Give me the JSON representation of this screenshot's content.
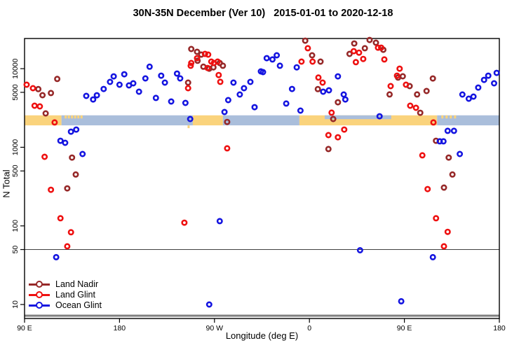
{
  "title": "30N-35N December (Ver 10)   2015-01-01 to 2020-12-18",
  "colors": {
    "land_nadir": "#962828",
    "land_glint": "#ee1010",
    "ocean_glint": "#1414e0",
    "strip_land": "#fad37c",
    "strip_ocean": "#aabedb",
    "ref_line_50": "#404040",
    "baseline_gray": "#7f7f7f",
    "axis": "#000000"
  },
  "legend": {
    "items": [
      {
        "label": "Land Nadir",
        "color_key": "land_nadir"
      },
      {
        "label": "Land Glint",
        "color_key": "land_glint"
      },
      {
        "label": "Ocean Glint",
        "color_key": "ocean_glint"
      }
    ]
  },
  "chart_data": {
    "type": "scatter",
    "title": "30N-35N December (Ver 10)   2015-01-01 to 2020-12-18",
    "xlabel": "Longitude (deg E)",
    "ylabel": "N Total",
    "grid": "off",
    "legend_position": "bottom-left",
    "x_axis": {
      "note": "wrapped longitude axis; d = degrees east of 90E at left edge, total span 450 deg",
      "range_deg": [
        0,
        450
      ],
      "ticks": [
        {
          "d": 0,
          "label": "90 E"
        },
        {
          "d": 90,
          "label": "180"
        },
        {
          "d": 180,
          "label": "90 W"
        },
        {
          "d": 270,
          "label": "0"
        },
        {
          "d": 360,
          "label": "90 E"
        },
        {
          "d": 450,
          "label": "180"
        }
      ]
    },
    "y_axis": {
      "scale": "log10",
      "ticks": [
        10,
        50,
        100,
        500,
        1000,
        5000,
        10000
      ],
      "range": [
        7,
        24500
      ]
    },
    "reference_lines": [
      {
        "n": 50,
        "width": 1,
        "color_key": "ref_line_50"
      },
      {
        "n": 7.2,
        "width": 3,
        "color_key": "baseline_gray"
      }
    ],
    "land_ocean_strip": {
      "note": "land/ocean map strip for 30N-35N band, N approx 1900-2550",
      "n_top": 2550,
      "n_bottom": 1900,
      "segments": [
        {
          "d1": 0,
          "d2": 35,
          "surface": "land"
        },
        {
          "d1": 35,
          "d2": 159.5,
          "surface": "ocean"
        },
        {
          "d1": 159.5,
          "d2": 188,
          "surface": "land"
        },
        {
          "d1": 188,
          "d2": 260.5,
          "surface": "ocean"
        },
        {
          "d1": 260.5,
          "d2": 391,
          "surface": "land"
        },
        {
          "d1": 391,
          "d2": 450,
          "surface": "ocean"
        }
      ],
      "island_specks_land_d": [
        39,
        42,
        45,
        48,
        51,
        54,
        396,
        400,
        404,
        408
      ],
      "ocean_sliver_top": {
        "d1": 284.5,
        "d2": 347.5
      },
      "land_notch_below_d": [
        155.5
      ]
    },
    "series": [
      {
        "name": "Land Nadir",
        "color_key": "land_nadir",
        "points": [
          [
            13,
            5500
          ],
          [
            17,
            4600
          ],
          [
            25,
            4900
          ],
          [
            31,
            7400
          ],
          [
            20,
            2700
          ],
          [
            45,
            740
          ],
          [
            48.5,
            450
          ],
          [
            40.5,
            300
          ],
          [
            158,
            17800
          ],
          [
            163.5,
            16400
          ],
          [
            167.5,
            15100
          ],
          [
            164,
            12600
          ],
          [
            169.5,
            10600
          ],
          [
            175,
            10000
          ],
          [
            179,
            10400
          ],
          [
            185,
            11800
          ],
          [
            188,
            10900
          ],
          [
            155,
            6650
          ],
          [
            192,
            2100
          ],
          [
            266,
            22700
          ],
          [
            272.5,
            14800
          ],
          [
            280.5,
            12300
          ],
          [
            278,
            5500
          ],
          [
            297,
            3740
          ],
          [
            292.5,
            2290
          ],
          [
            288,
            950
          ],
          [
            308,
            15400
          ],
          [
            312.5,
            20900
          ],
          [
            322.5,
            18200
          ],
          [
            327,
            23200
          ],
          [
            333,
            21400
          ],
          [
            340,
            17400
          ],
          [
            354,
            7700
          ],
          [
            358.5,
            8000
          ],
          [
            365,
            6000
          ],
          [
            346,
            4700
          ],
          [
            372,
            4700
          ],
          [
            381,
            5200
          ],
          [
            387,
            7500
          ],
          [
            375,
            2750
          ],
          [
            390,
            1210
          ],
          [
            402,
            740
          ],
          [
            405.5,
            450
          ],
          [
            397.5,
            307
          ]
        ]
      },
      {
        "name": "Land Glint",
        "color_key": "land_glint",
        "points": [
          [
            2,
            6250
          ],
          [
            8,
            5640
          ],
          [
            9.5,
            3380
          ],
          [
            14.5,
            3310
          ],
          [
            28.5,
            2070
          ],
          [
            19,
            757
          ],
          [
            25,
            288
          ],
          [
            34,
            125
          ],
          [
            44,
            83
          ],
          [
            40.5,
            55
          ],
          [
            151.5,
            110
          ],
          [
            192,
            970
          ],
          [
            158,
            11800
          ],
          [
            163.5,
            13600
          ],
          [
            157.5,
            10900
          ],
          [
            171,
            15400
          ],
          [
            174,
            15100
          ],
          [
            173.5,
            10200
          ],
          [
            177,
            12300
          ],
          [
            179.5,
            11800
          ],
          [
            183,
            12300
          ],
          [
            184,
            8300
          ],
          [
            185.5,
            6800
          ],
          [
            155,
            5640
          ],
          [
            268.5,
            18200
          ],
          [
            262.5,
            12300
          ],
          [
            273,
            12300
          ],
          [
            278.5,
            7700
          ],
          [
            282.5,
            6650
          ],
          [
            291,
            2760
          ],
          [
            303,
            1680
          ],
          [
            288,
            1430
          ],
          [
            297,
            1340
          ],
          [
            312,
            16700
          ],
          [
            314,
            12100
          ],
          [
            317,
            16000
          ],
          [
            321,
            13300
          ],
          [
            335,
            18500
          ],
          [
            338,
            18500
          ],
          [
            341,
            13100
          ],
          [
            355.5,
            10000
          ],
          [
            353,
            8150
          ],
          [
            347,
            6000
          ],
          [
            361.5,
            6250
          ],
          [
            365.5,
            3380
          ],
          [
            371,
            3180
          ],
          [
            387.5,
            2070
          ],
          [
            377,
            790
          ],
          [
            382,
            294
          ],
          [
            390,
            125
          ],
          [
            401,
            84
          ],
          [
            397.5,
            55
          ]
        ]
      },
      {
        "name": "Ocean Glint",
        "color_key": "ocean_glint",
        "points": [
          [
            58.5,
            4500
          ],
          [
            65,
            4060
          ],
          [
            68.5,
            4590
          ],
          [
            75,
            5520
          ],
          [
            81,
            6790
          ],
          [
            84.5,
            7980
          ],
          [
            90,
            6250
          ],
          [
            94.5,
            8490
          ],
          [
            99,
            6120
          ],
          [
            103,
            6520
          ],
          [
            108.5,
            5090
          ],
          [
            114.5,
            7520
          ],
          [
            118.5,
            10600
          ],
          [
            124.5,
            4240
          ],
          [
            129.5,
            8150
          ],
          [
            133,
            6650
          ],
          [
            139,
            3820
          ],
          [
            144.5,
            8670
          ],
          [
            147.5,
            7520
          ],
          [
            152.5,
            3670
          ],
          [
            157,
            2290
          ],
          [
            198,
            6650
          ],
          [
            204,
            4690
          ],
          [
            208,
            5640
          ],
          [
            214,
            6790
          ],
          [
            193,
            3980
          ],
          [
            189.5,
            2810
          ],
          [
            218,
            3240
          ],
          [
            224,
            9230
          ],
          [
            229.5,
            13600
          ],
          [
            235,
            13100
          ],
          [
            239,
            14800
          ],
          [
            242,
            10900
          ],
          [
            226,
            9040
          ],
          [
            258,
            10400
          ],
          [
            253.5,
            5520
          ],
          [
            248,
            3600
          ],
          [
            261.5,
            2930
          ],
          [
            283,
            5090
          ],
          [
            288.5,
            5310
          ],
          [
            297,
            7980
          ],
          [
            302.5,
            4690
          ],
          [
            304,
            4060
          ],
          [
            336.5,
            2480
          ],
          [
            415,
            4690
          ],
          [
            421,
            4150
          ],
          [
            425.5,
            4410
          ],
          [
            430,
            5750
          ],
          [
            435.5,
            7210
          ],
          [
            439.5,
            8150
          ],
          [
            445,
            6520
          ],
          [
            447.5,
            8850
          ],
          [
            44,
            1580
          ],
          [
            49,
            1680
          ],
          [
            34,
            1210
          ],
          [
            38.5,
            1140
          ],
          [
            55,
            821
          ],
          [
            30,
            40
          ],
          [
            185,
            115
          ],
          [
            175,
            10
          ],
          [
            318,
            49
          ],
          [
            387,
            40
          ],
          [
            357,
            11
          ],
          [
            401,
            1620
          ],
          [
            407,
            1620
          ],
          [
            393.5,
            1190
          ],
          [
            397,
            1190
          ],
          [
            412.5,
            821
          ]
        ]
      }
    ]
  }
}
